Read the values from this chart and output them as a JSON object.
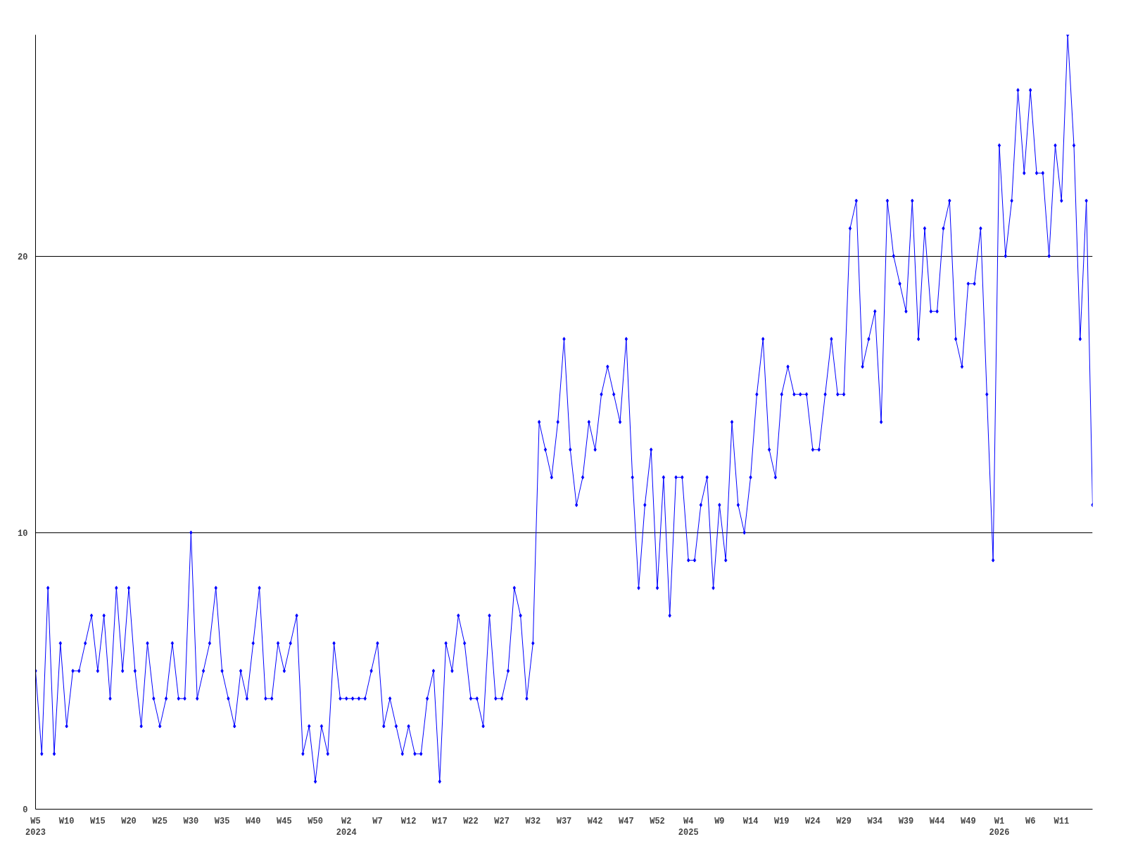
{
  "chart_data": {
    "type": "line",
    "categories": [
      "W5\n2023",
      null,
      null,
      null,
      null,
      "W10",
      null,
      null,
      null,
      null,
      "W15",
      null,
      null,
      null,
      null,
      "W20",
      null,
      null,
      null,
      null,
      "W25",
      null,
      null,
      null,
      null,
      "W30",
      null,
      null,
      null,
      null,
      "W35",
      null,
      null,
      null,
      null,
      "W40",
      null,
      null,
      null,
      null,
      "W45",
      null,
      null,
      null,
      null,
      "W50",
      null,
      null,
      null,
      null,
      "W2\n2024",
      null,
      null,
      null,
      null,
      "W7",
      null,
      null,
      null,
      null,
      "W12",
      null,
      null,
      null,
      null,
      "W17",
      null,
      null,
      null,
      null,
      "W22",
      null,
      null,
      null,
      null,
      "W27",
      null,
      null,
      null,
      null,
      "W32",
      null,
      null,
      null,
      null,
      "W37",
      null,
      null,
      null,
      null,
      "W42",
      null,
      null,
      null,
      null,
      "W47",
      null,
      null,
      null,
      null,
      "W52",
      null,
      null,
      null,
      null,
      "W4\n2025",
      null,
      null,
      null,
      null,
      "W9",
      null,
      null,
      null,
      null,
      "W14",
      null,
      null,
      null,
      null,
      "W19",
      null,
      null,
      null,
      null,
      "W24",
      null,
      null,
      null,
      null,
      "W29",
      null,
      null,
      null,
      null,
      "W34",
      null,
      null,
      null,
      null,
      "W39",
      null,
      null,
      null,
      null,
      "W44",
      null,
      null,
      null,
      null,
      "W49",
      null,
      null,
      null,
      null,
      "W1\n2026",
      null,
      null,
      null,
      null,
      "W6",
      null,
      null,
      null,
      null,
      "W11",
      null,
      null,
      null,
      null,
      null
    ],
    "series": [
      {
        "color": "#0000ff",
        "values": [
          5,
          2,
          8,
          2,
          6,
          3,
          5,
          5,
          6,
          7,
          5,
          7,
          4,
          8,
          5,
          8,
          5,
          3,
          6,
          4,
          3,
          4,
          6,
          4,
          4,
          10,
          4,
          5,
          6,
          8,
          5,
          4,
          3,
          5,
          4,
          6,
          8,
          4,
          4,
          6,
          5,
          6,
          7,
          2,
          3,
          1,
          3,
          2,
          6,
          4,
          4,
          4,
          4,
          4,
          5,
          6,
          3,
          4,
          3,
          2,
          3,
          2,
          2,
          4,
          5,
          1,
          6,
          5,
          7,
          6,
          4,
          4,
          3,
          7,
          4,
          4,
          5,
          8,
          7,
          4,
          6,
          14,
          13,
          12,
          14,
          17,
          13,
          11,
          12,
          14,
          13,
          15,
          16,
          15,
          14,
          17,
          12,
          8,
          11,
          13,
          8,
          12,
          7,
          12,
          12,
          9,
          9,
          11,
          12,
          8,
          11,
          9,
          14,
          11,
          10,
          12,
          15,
          17,
          13,
          12,
          15,
          16,
          15,
          15,
          15,
          13,
          13,
          15,
          17,
          15,
          15,
          21,
          22,
          16,
          17,
          18,
          14,
          22,
          20,
          19,
          18,
          22,
          17,
          21,
          18,
          18,
          21,
          22,
          17,
          16,
          19,
          19,
          21,
          15,
          9,
          24,
          20,
          22,
          26,
          23,
          26,
          23,
          23,
          20,
          24,
          22,
          28,
          24,
          17,
          22,
          11
        ]
      }
    ],
    "ylim": [
      0,
      28
    ],
    "yticks": [
      0,
      10,
      20
    ],
    "grid": "y",
    "marker": "diamond",
    "line_style": "solid"
  }
}
